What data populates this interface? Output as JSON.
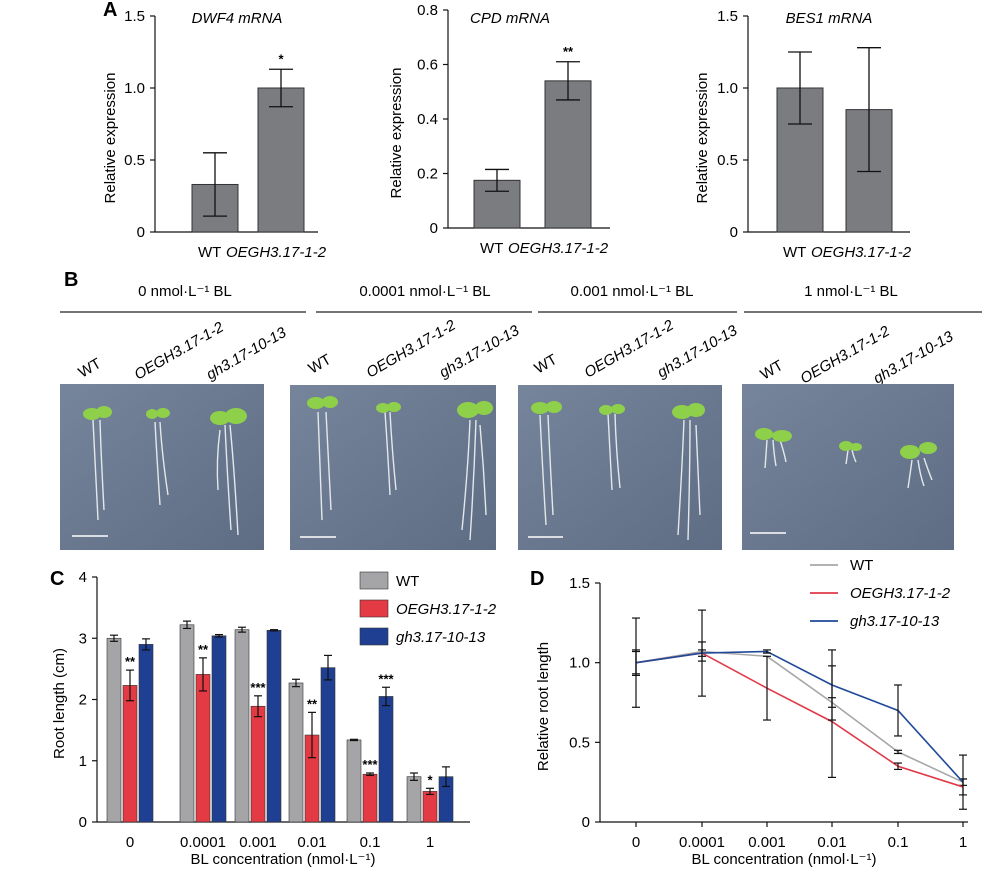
{
  "colors": {
    "grey": "#a5a5a8",
    "grey_dark": "#7b7c80",
    "red": "#e33a43",
    "blue": "#1f3f92",
    "line_grey": "#a7a7a7",
    "line_red": "#e03a48",
    "line_blue": "#1f4a99",
    "photo_background": "#6d7c93"
  },
  "panel_labels": {
    "a": "A",
    "b": "B",
    "c": "C",
    "d": "D"
  },
  "panel_b": {
    "conditions": [
      "0 nmol·L⁻¹ BL",
      "0.0001 nmol·L⁻¹ BL",
      "0.001 nmol·L⁻¹ BL",
      "1 nmol·L⁻¹ BL"
    ],
    "genotype_labels": [
      "WT",
      "OEGH3.17-1-2",
      "gh3.17-10-13"
    ]
  },
  "chart_data": [
    {
      "id": "A1",
      "type": "bar",
      "title": "DWF4 mRNA",
      "ylabel": "Relative expression",
      "categories": [
        "WT",
        "OEGH3.17-1-2"
      ],
      "values": [
        0.33,
        1.0
      ],
      "errors": [
        0.22,
        0.13
      ],
      "significance": [
        "",
        "*"
      ],
      "ylim": [
        0,
        1.5
      ],
      "yticks": [
        "0",
        "0.5",
        "1.0",
        "1.5"
      ]
    },
    {
      "id": "A2",
      "type": "bar",
      "title": "CPD mRNA",
      "ylabel": "Relative expression",
      "categories": [
        "WT",
        "OEGH3.17-1-2"
      ],
      "values": [
        0.175,
        0.54
      ],
      "errors": [
        0.04,
        0.07
      ],
      "significance": [
        "",
        "**"
      ],
      "ylim": [
        0,
        0.8
      ],
      "yticks": [
        "0",
        "0.2",
        "0.4",
        "0.6",
        "0.8"
      ]
    },
    {
      "id": "A3",
      "type": "bar",
      "title": "BES1 mRNA",
      "ylabel": "Relative expression",
      "categories": [
        "WT",
        "OEGH3.17-1-2"
      ],
      "values": [
        1.0,
        0.85
      ],
      "errors": [
        0.25,
        0.43
      ],
      "significance": [
        "",
        ""
      ],
      "ylim": [
        0,
        1.5
      ],
      "yticks": [
        "0",
        "0.5",
        "1.0",
        "1.5"
      ]
    },
    {
      "id": "C",
      "type": "bar",
      "ylabel": "Root length (cm)",
      "xlabel": "BL concentration (nmol·L⁻¹)",
      "categories": [
        "0",
        "0.0001",
        "0.001",
        "0.01",
        "0.1",
        "1"
      ],
      "ylim": [
        0,
        4
      ],
      "yticks": [
        "0",
        "1",
        "2",
        "3",
        "4"
      ],
      "legend_position": "top-right",
      "series": [
        {
          "name": "WT",
          "color": "#a5a5a8",
          "values": [
            3.0,
            3.22,
            3.14,
            2.27,
            1.34,
            0.74
          ],
          "errors": [
            0.05,
            0.06,
            0.04,
            0.06,
            0.01,
            0.06
          ],
          "significance": [
            "",
            "",
            "",
            "",
            "",
            ""
          ]
        },
        {
          "name": "OEGH3.17-1-2",
          "color": "#e33a43",
          "values": [
            2.23,
            2.41,
            1.89,
            1.42,
            0.78,
            0.5
          ],
          "errors": [
            0.25,
            0.27,
            0.17,
            0.37,
            0.02,
            0.05
          ],
          "significance": [
            "**",
            "**",
            "***",
            "**",
            "***",
            "*"
          ]
        },
        {
          "name": "gh3.17-10-13",
          "color": "#1f3f92",
          "values": [
            2.9,
            3.04,
            3.13,
            2.52,
            2.05,
            0.74
          ],
          "errors": [
            0.09,
            0.02,
            0.01,
            0.2,
            0.15,
            0.16
          ],
          "significance": [
            "",
            "",
            "",
            "",
            "***",
            ""
          ]
        }
      ]
    },
    {
      "id": "D",
      "type": "line",
      "ylabel": "Relative root length",
      "xlabel": "BL concentration (nmol·L⁻¹)",
      "categories": [
        "0",
        "0.0001",
        "0.001",
        "0.01",
        "0.1",
        "1"
      ],
      "ylim": [
        0,
        1.5
      ],
      "yticks": [
        "0",
        "0.5",
        "1.0",
        "1.5"
      ],
      "legend_position": "top-right",
      "series": [
        {
          "name": "WT",
          "color": "#a7a7a7",
          "values": [
            1.0,
            1.07,
            1.04,
            0.75,
            0.44,
            0.25
          ],
          "errors": [
            0.08,
            0.06,
            0.0,
            0.03,
            0.01,
            0.02
          ]
        },
        {
          "name": "OEGH3.17-1-2",
          "color": "#e03a48",
          "values": [
            1.0,
            1.06,
            0.84,
            0.63,
            0.35,
            0.22
          ],
          "errors": [
            0.28,
            0.27,
            0.2,
            0.35,
            0.02,
            0.05
          ]
        },
        {
          "name": "gh3.17-10-13",
          "color": "#1f4a99",
          "values": [
            1.0,
            1.06,
            1.07,
            0.86,
            0.7,
            0.25
          ],
          "errors": [
            0.07,
            0.02,
            0.01,
            0.22,
            0.16,
            0.17
          ]
        }
      ]
    }
  ]
}
